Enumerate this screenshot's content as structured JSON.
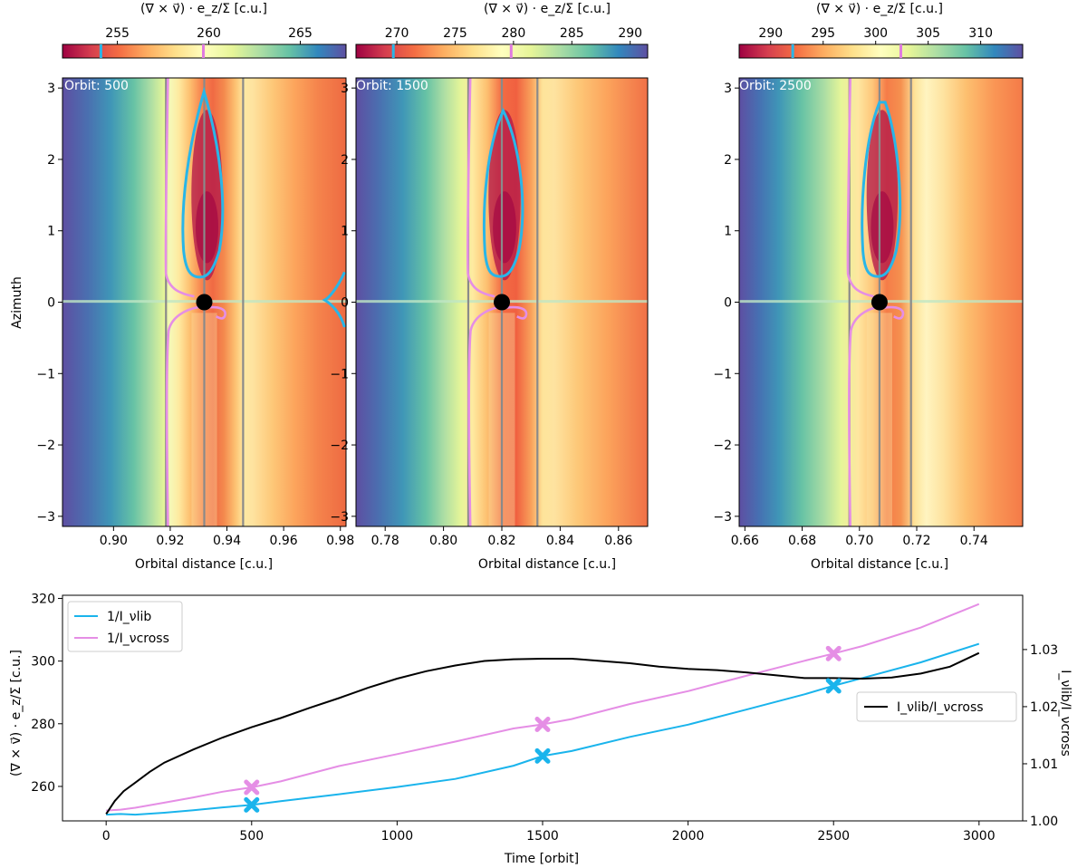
{
  "chart_data": [
    {
      "type": "heatmap",
      "panel": "top-left",
      "annotation": "Orbit: 500",
      "colorbar": {
        "label": "(∇ × v⃗) · e_z/Σ [c.u.]",
        "colormap": "Spectral",
        "range": [
          252,
          267.5
        ],
        "ticks": [
          255,
          260,
          265
        ],
        "markers": [
          {
            "value": 254.1,
            "color": "#29b6e8"
          },
          {
            "value": 259.7,
            "color": "#e07be0"
          }
        ]
      },
      "xlabel": "Orbital distance [c.u.]",
      "ylabel": "Azimuth",
      "xlim": [
        0.882,
        0.982
      ],
      "ylim": [
        -3.14159,
        3.14159
      ],
      "xticks": [
        0.9,
        0.92,
        0.94,
        0.96,
        0.98
      ],
      "xtick_labels": [
        "0.90",
        "0.92",
        "0.94",
        "0.96",
        "0.98"
      ],
      "yticks": [
        -3,
        -2,
        -1,
        0,
        1,
        2,
        3
      ],
      "ytick_labels": [
        "−3",
        "−2",
        "−1",
        "0",
        "1",
        "2",
        "3"
      ],
      "planet_position": [
        0.932,
        0
      ],
      "vertical_lines": [
        0.9185,
        0.932,
        0.9457
      ]
    },
    {
      "type": "heatmap",
      "panel": "top-middle",
      "annotation": "Orbit: 1500",
      "colorbar": {
        "label": "(∇ × v⃗) · e_z/Σ [c.u.]",
        "colormap": "Spectral",
        "range": [
          266.5,
          291.5
        ],
        "ticks": [
          270,
          275,
          280,
          285,
          290
        ],
        "markers": [
          {
            "value": 269.7,
            "color": "#29b6e8"
          },
          {
            "value": 279.8,
            "color": "#e07be0"
          }
        ]
      },
      "xlabel": "Orbital distance [c.u.]",
      "ylabel": "",
      "xlim": [
        0.77,
        0.87
      ],
      "ylim": [
        -3.14159,
        3.14159
      ],
      "xticks": [
        0.78,
        0.8,
        0.82,
        0.84,
        0.86
      ],
      "xtick_labels": [
        "0.78",
        "0.80",
        "0.82",
        "0.84",
        "0.86"
      ],
      "yticks": [
        -3,
        -2,
        -1,
        0,
        1,
        2,
        3
      ],
      "ytick_labels": [
        "−3",
        "−2",
        "−1",
        "0",
        "1",
        "2",
        "3"
      ],
      "planet_position": [
        0.82,
        0
      ],
      "vertical_lines": [
        0.8085,
        0.82,
        0.8322
      ]
    },
    {
      "type": "heatmap",
      "panel": "top-right",
      "annotation": "Orbit: 2500",
      "colorbar": {
        "label": "(∇ × v⃗) · e_z/Σ [c.u.]",
        "colormap": "Spectral",
        "range": [
          287,
          314
        ],
        "ticks": [
          290,
          295,
          300,
          305,
          310
        ],
        "markers": [
          {
            "value": 292.1,
            "color": "#29b6e8"
          },
          {
            "value": 302.4,
            "color": "#e07be0"
          }
        ]
      },
      "xlabel": "Orbital distance [c.u.]",
      "ylabel": "",
      "xlim": [
        0.658,
        0.757
      ],
      "ylim": [
        -3.14159,
        3.14159
      ],
      "xticks": [
        0.66,
        0.68,
        0.7,
        0.72,
        0.74
      ],
      "xtick_labels": [
        "0.66",
        "0.68",
        "0.70",
        "0.72",
        "0.74"
      ],
      "yticks": [
        -3,
        -2,
        -1,
        0,
        1,
        2,
        3
      ],
      "ytick_labels": [
        "−3",
        "−2",
        "−1",
        "0",
        "1",
        "2",
        "3"
      ],
      "planet_position": [
        0.707,
        0
      ],
      "vertical_lines": [
        0.6965,
        0.707,
        0.718
      ]
    },
    {
      "type": "line",
      "panel": "bottom",
      "xlabel": "Time [orbit]",
      "ylabel": "(∇ × v⃗) · e_z/Σ [c.u.]",
      "ylabel_right": "I_νlib/I_νcross",
      "xlim": [
        -150,
        3150
      ],
      "ylim": [
        249,
        321
      ],
      "ylim_right": [
        1.0,
        1.0395
      ],
      "xticks": [
        0,
        500,
        1000,
        1500,
        2000,
        2500,
        3000
      ],
      "yticks": [
        260,
        280,
        300,
        320
      ],
      "yticks_right": [
        1.0,
        1.01,
        1.02,
        1.03
      ],
      "yticks_right_labels": [
        "1.00",
        "1.01",
        "1.02",
        "1.03"
      ],
      "legend_left": {
        "placement": "upper-left",
        "entries": [
          "1/I_νlib",
          "1/I_νcross"
        ]
      },
      "legend_right": {
        "placement": "center-right",
        "entries": [
          "I_νlib/I_νcross"
        ]
      },
      "series": [
        {
          "name": "1/I_νlib",
          "axis": "left",
          "color": "#1ab4ec",
          "x": [
            0,
            50,
            100,
            200,
            300,
            400,
            500,
            600,
            800,
            1000,
            1200,
            1400,
            1500,
            1600,
            1800,
            2000,
            2200,
            2400,
            2500,
            2600,
            2800,
            3000
          ],
          "y": [
            251,
            251.2,
            251,
            251.6,
            252.4,
            253.3,
            254.1,
            255.3,
            257.5,
            259.8,
            262.4,
            266.6,
            269.7,
            271.3,
            275.8,
            279.7,
            284.5,
            289.4,
            292.1,
            294.6,
            299.6,
            305.5
          ]
        },
        {
          "name": "1/I_νcross",
          "axis": "left",
          "color": "#e58ee5",
          "x": [
            0,
            50,
            100,
            200,
            300,
            400,
            500,
            600,
            800,
            1000,
            1200,
            1400,
            1500,
            1600,
            1800,
            2000,
            2200,
            2400,
            2500,
            2600,
            2800,
            3000
          ],
          "y": [
            252.3,
            252.6,
            253.2,
            254.8,
            256.5,
            258.3,
            259.7,
            261.6,
            266.5,
            270.3,
            274.3,
            278.5,
            279.8,
            281.5,
            286.3,
            290.4,
            295.3,
            300.1,
            302.4,
            304.8,
            310.7,
            318.2
          ]
        },
        {
          "name": "I_νlib/I_νcross",
          "axis": "right",
          "color": "#000000",
          "x": [
            0,
            30,
            60,
            100,
            150,
            200,
            300,
            400,
            500,
            600,
            700,
            800,
            900,
            1000,
            1100,
            1200,
            1300,
            1400,
            1500,
            1600,
            1700,
            1800,
            1900,
            2000,
            2100,
            2200,
            2300,
            2400,
            2500,
            2600,
            2700,
            2800,
            2900,
            3000
          ],
          "y": [
            1.0012,
            1.0035,
            1.0052,
            1.0067,
            1.0086,
            1.0102,
            1.0125,
            1.0146,
            1.0164,
            1.018,
            1.0198,
            1.0215,
            1.0233,
            1.0249,
            1.0262,
            1.0272,
            1.028,
            1.0283,
            1.0284,
            1.0284,
            1.028,
            1.0276,
            1.027,
            1.0266,
            1.0264,
            1.026,
            1.0255,
            1.025,
            1.025,
            1.0249,
            1.0251,
            1.0258,
            1.027,
            1.0294
          ]
        }
      ],
      "markers": [
        {
          "series": "1/I_νlib",
          "x": [
            500,
            1500,
            2500
          ],
          "y": [
            254.1,
            269.7,
            292.1
          ],
          "color": "#1ab4ec"
        },
        {
          "series": "1/I_νcross",
          "x": [
            500,
            1500,
            2500
          ],
          "y": [
            259.7,
            279.8,
            302.4
          ],
          "color": "#e58ee5"
        }
      ]
    }
  ]
}
